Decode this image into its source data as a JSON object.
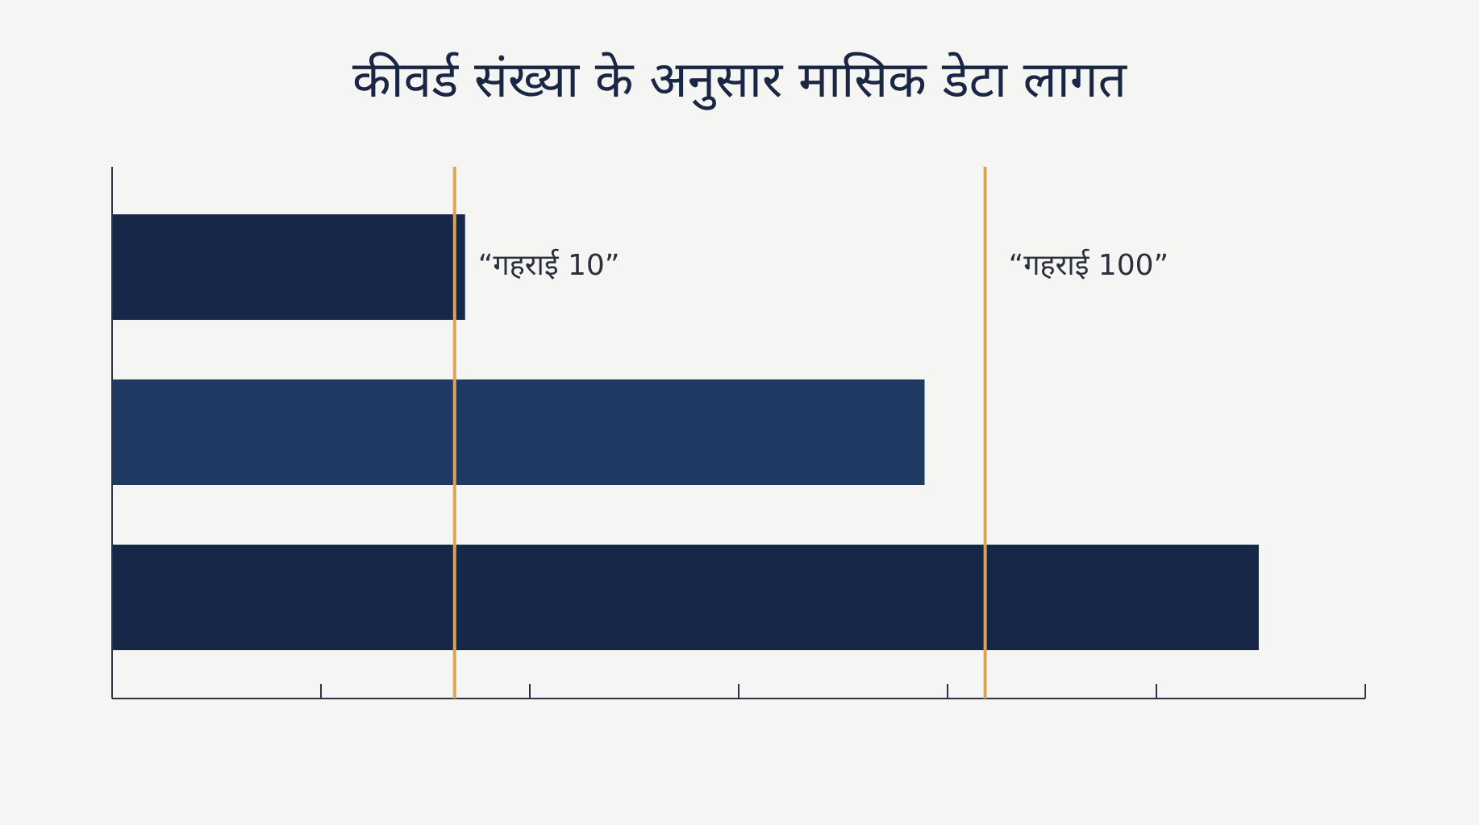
{
  "chart_data": {
    "type": "bar",
    "orientation": "horizontal",
    "title": "कीवर्ड संख्या के अनुसार मासिक डेटा लागत",
    "xlabel": "",
    "ylabel": "",
    "xlim": [
      0,
      6
    ],
    "x_ticks": [
      1,
      2,
      3,
      4,
      5,
      6
    ],
    "tick_labels_shown": false,
    "grid": false,
    "legend": "none",
    "values": [
      1.69,
      3.89,
      5.49
    ],
    "bar_colors": [
      "#172747",
      "#1f3a62",
      "#172747"
    ],
    "reference_lines": [
      {
        "value": 1.64,
        "label": "“गहराई 10”",
        "color": "#d9a45a"
      },
      {
        "value": 4.18,
        "label": "“गहराई 100”",
        "color": "#d9a45a"
      }
    ],
    "axis_color": "#2b3446"
  }
}
